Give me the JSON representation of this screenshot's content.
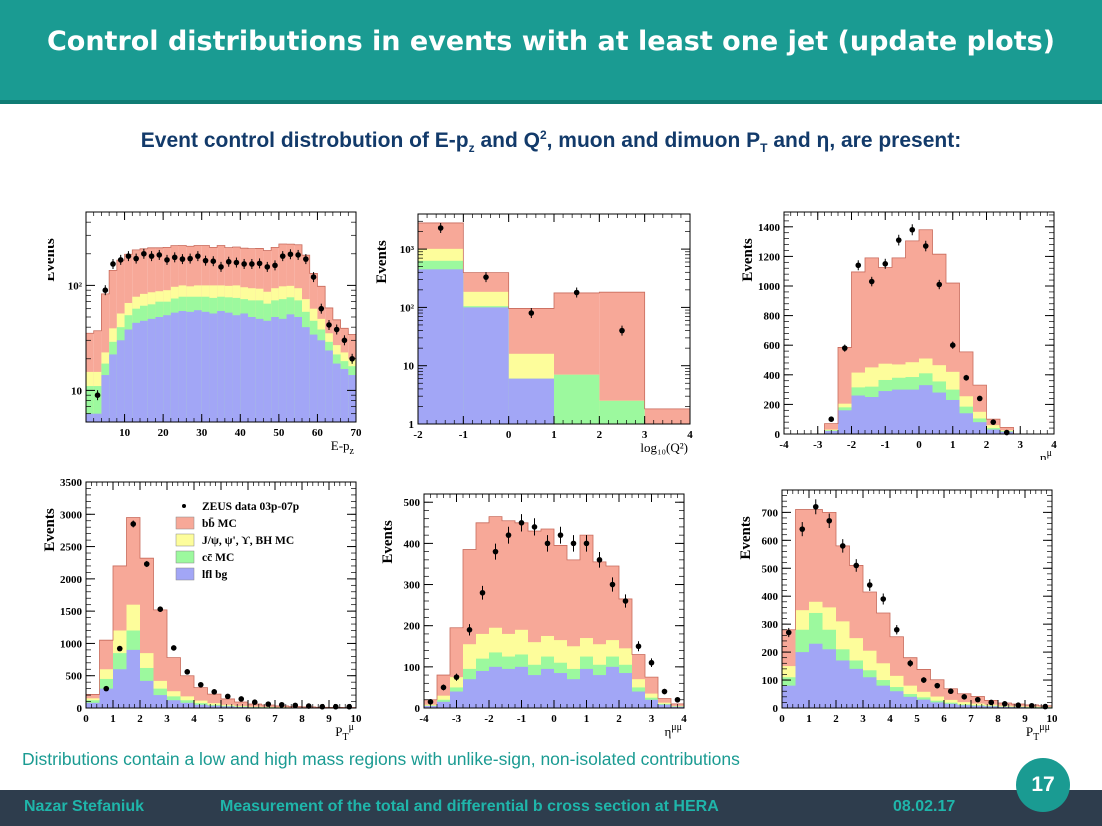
{
  "header": {
    "title": "Control distributions in events with at least one jet (update plots)"
  },
  "subtitle": {
    "part1": "Event control distrobution of E-p",
    "sub1": "z",
    "part2": " and Q",
    "sup2": "2",
    "part3": ", muon and dimuon  P",
    "sub3": "T",
    "part4": " and  η,  are present:"
  },
  "note": "Distributions contain a low and high mass regions with unlike-sign, non-isolated contributions",
  "footer": {
    "author": "Nazar  Stefaniuk",
    "talk": "Measurement of the total and differential b cross section at HERA",
    "date": "08.02.17",
    "page": "17"
  },
  "colors": {
    "bb": "#f7a898",
    "jpsi": "#fdfd9b",
    "cc": "#9cf99e",
    "lfl": "#a2a6f6",
    "header": "#1a9b92"
  },
  "chart_data": [
    {
      "type": "area",
      "xlabel": "E-p_z",
      "ylabel": "Events",
      "log": true,
      "xlim": [
        0,
        70
      ],
      "ylim": [
        5,
        500
      ],
      "xticks": [
        10,
        20,
        30,
        40,
        50,
        60,
        70
      ],
      "yticks": [
        {
          "v": 10,
          "t": "10"
        },
        {
          "v": 100,
          "t": "10²"
        }
      ],
      "edges": [
        0,
        2,
        4,
        6,
        8,
        10,
        12,
        14,
        16,
        18,
        20,
        22,
        24,
        26,
        28,
        30,
        32,
        34,
        36,
        38,
        40,
        42,
        44,
        46,
        48,
        50,
        52,
        54,
        56,
        58,
        60,
        62,
        64,
        66,
        68,
        70
      ],
      "lfl": [
        6,
        6,
        14,
        22,
        30,
        38,
        44,
        46,
        48,
        50,
        52,
        55,
        57,
        56,
        58,
        56,
        54,
        57,
        55,
        52,
        54,
        50,
        48,
        46,
        50,
        48,
        53,
        50,
        40,
        34,
        30,
        24,
        18,
        16,
        14
      ],
      "cc": [
        5,
        5,
        4,
        7,
        10,
        14,
        16,
        18,
        18,
        20,
        18,
        20,
        21,
        22,
        20,
        22,
        22,
        21,
        22,
        24,
        20,
        22,
        24,
        21,
        22,
        26,
        24,
        22,
        16,
        12,
        8,
        5,
        4,
        3,
        3
      ],
      "jpsi": [
        4,
        4,
        5,
        10,
        14,
        16,
        18,
        19,
        20,
        18,
        20,
        22,
        22,
        20,
        22,
        22,
        24,
        22,
        22,
        24,
        22,
        22,
        21,
        20,
        22,
        24,
        22,
        22,
        18,
        14,
        10,
        6,
        5,
        4,
        3
      ],
      "bb": [
        20,
        22,
        60,
        100,
        120,
        130,
        140,
        140,
        142,
        140,
        140,
        142,
        140,
        138,
        140,
        140,
        130,
        140,
        130,
        132,
        130,
        130,
        132,
        128,
        136,
        150,
        148,
        150,
        120,
        70,
        50,
        26,
        20,
        16,
        14
      ],
      "data_x": [
        3,
        5,
        7,
        9,
        11,
        13,
        15,
        17,
        19,
        21,
        23,
        25,
        27,
        29,
        31,
        33,
        35,
        37,
        39,
        41,
        43,
        45,
        47,
        49,
        51,
        53,
        55,
        57,
        59,
        61,
        63,
        65,
        67,
        69
      ],
      "data_y": [
        9,
        90,
        160,
        175,
        190,
        180,
        200,
        190,
        195,
        175,
        185,
        178,
        180,
        190,
        172,
        170,
        150,
        168,
        165,
        160,
        160,
        162,
        150,
        155,
        190,
        198,
        195,
        178,
        120,
        60,
        42,
        38,
        30,
        20
      ]
    },
    {
      "type": "area",
      "xlabel": "log₁₀(Q²)",
      "ylabel": "Events",
      "log": true,
      "xlim": [
        -2,
        4
      ],
      "ylim": [
        1,
        4000
      ],
      "xticks": [
        -2,
        -1,
        0,
        1,
        2,
        3,
        4
      ],
      "yticks": [
        {
          "v": 1,
          "t": "1"
        },
        {
          "v": 10,
          "t": "10"
        },
        {
          "v": 100,
          "t": "10²"
        },
        {
          "v": 1000,
          "t": "10³"
        }
      ],
      "edges": [
        -2,
        -1,
        0,
        1,
        2,
        3,
        4
      ],
      "lfl": [
        450,
        100,
        6,
        1,
        1,
        1
      ],
      "cc": [
        180,
        5,
        0.01,
        6,
        1.5,
        0.01
      ],
      "jpsi": [
        380,
        80,
        10,
        0.01,
        0.01,
        0.01
      ],
      "bb": [
        1800,
        210,
        80,
        170,
        180,
        0.8
      ],
      "data_x": [
        -1.5,
        -0.5,
        0.5,
        1.5,
        2.5
      ],
      "data_y": [
        2300,
        330,
        80,
        180,
        40
      ]
    },
    {
      "type": "area",
      "xlabel": "η^μ",
      "ylabel": "Events",
      "log": false,
      "xlim": [
        -4,
        4
      ],
      "ylim": [
        0,
        1500
      ],
      "xticks": [
        -4,
        -3,
        -2,
        -1,
        0,
        1,
        2,
        3,
        4
      ],
      "yticks": [
        {
          "v": 0,
          "t": "0"
        },
        {
          "v": 200,
          "t": "200"
        },
        {
          "v": 400,
          "t": "400"
        },
        {
          "v": 600,
          "t": "600"
        },
        {
          "v": 800,
          "t": "800"
        },
        {
          "v": 1000,
          "t": "1000"
        },
        {
          "v": 1200,
          "t": "1200"
        },
        {
          "v": 1400,
          "t": "1400"
        }
      ],
      "edges": [
        -2.8,
        -2.4,
        -2.0,
        -1.6,
        -1.2,
        -0.8,
        -0.4,
        0.0,
        0.4,
        0.8,
        1.2,
        1.6,
        2.0,
        2.4,
        2.8,
        3.2
      ],
      "lfl": [
        20,
        160,
        260,
        250,
        290,
        300,
        300,
        330,
        280,
        230,
        140,
        80,
        30,
        15,
        0
      ],
      "cc": [
        5,
        20,
        55,
        70,
        75,
        80,
        85,
        80,
        75,
        70,
        45,
        25,
        10,
        5,
        0
      ],
      "jpsi": [
        5,
        25,
        100,
        130,
        110,
        90,
        100,
        100,
        110,
        120,
        70,
        45,
        20,
        5,
        0
      ],
      "bb": [
        40,
        380,
        680,
        740,
        650,
        720,
        820,
        870,
        750,
        600,
        300,
        180,
        40,
        20,
        0
      ],
      "data_x": [
        -2.6,
        -2.2,
        -1.8,
        -1.4,
        -1.0,
        -0.6,
        -0.2,
        0.2,
        0.6,
        1.0,
        1.4,
        1.8,
        2.2,
        2.6
      ],
      "data_y": [
        100,
        580,
        1140,
        1030,
        1150,
        1310,
        1380,
        1270,
        1010,
        600,
        380,
        240,
        80,
        10
      ]
    },
    {
      "type": "area",
      "xlabel": "P_T^μ",
      "ylabel": "Events",
      "log": false,
      "xlim": [
        0,
        10
      ],
      "ylim": [
        0,
        3500
      ],
      "xticks": [
        0,
        1,
        2,
        3,
        4,
        5,
        6,
        7,
        8,
        9,
        10
      ],
      "yticks": [
        {
          "v": 0,
          "t": "0"
        },
        {
          "v": 500,
          "t": "500"
        },
        {
          "v": 1000,
          "t": "1000"
        },
        {
          "v": 1500,
          "t": "1500"
        },
        {
          "v": 2000,
          "t": "2000"
        },
        {
          "v": 2500,
          "t": "2500"
        },
        {
          "v": 3000,
          "t": "3000"
        },
        {
          "v": 3500,
          "t": "3500"
        }
      ],
      "edges": [
        0,
        0.5,
        1.0,
        1.5,
        2.0,
        2.5,
        3.0,
        3.5,
        4.0,
        4.5,
        5.0,
        5.5,
        6.0,
        6.5,
        7.0,
        7.5,
        8.0,
        8.5,
        9.0,
        9.5,
        10.0
      ],
      "lfl": [
        80,
        300,
        600,
        900,
        420,
        200,
        120,
        80,
        50,
        35,
        25,
        15,
        10,
        8,
        6,
        4,
        3,
        2,
        2,
        1
      ],
      "cc": [
        40,
        150,
        250,
        300,
        200,
        100,
        60,
        40,
        25,
        15,
        10,
        8,
        5,
        4,
        3,
        2,
        2,
        1,
        1,
        1
      ],
      "jpsi": [
        30,
        150,
        350,
        400,
        230,
        120,
        80,
        60,
        40,
        25,
        15,
        10,
        6,
        4,
        3,
        2,
        2,
        1,
        1,
        1
      ],
      "bb": [
        60,
        450,
        1000,
        1350,
        1470,
        1100,
        520,
        320,
        200,
        140,
        90,
        60,
        40,
        30,
        20,
        15,
        10,
        8,
        6,
        4
      ],
      "data_x": [
        0.75,
        1.25,
        1.75,
        2.25,
        2.75,
        3.25,
        3.75,
        4.25,
        4.75,
        5.25,
        5.75,
        6.25,
        6.75,
        7.25,
        7.75,
        8.25,
        8.75,
        9.25,
        9.75
      ],
      "data_y": [
        300,
        920,
        2850,
        2230,
        1530,
        930,
        560,
        360,
        250,
        180,
        140,
        90,
        60,
        50,
        40,
        30,
        20,
        20,
        20
      ]
    },
    {
      "type": "area",
      "xlabel": "η^μμ",
      "ylabel": "Events",
      "log": false,
      "xlim": [
        -4,
        4
      ],
      "ylim": [
        0,
        520
      ],
      "xticks": [
        -4,
        -3,
        -2,
        -1,
        0,
        1,
        2,
        3,
        4
      ],
      "yticks": [
        {
          "v": 0,
          "t": "0"
        },
        {
          "v": 100,
          "t": "100"
        },
        {
          "v": 200,
          "t": "200"
        },
        {
          "v": 300,
          "t": "300"
        },
        {
          "v": 400,
          "t": "400"
        },
        {
          "v": 500,
          "t": "500"
        }
      ],
      "edges": [
        -4.0,
        -3.6,
        -3.2,
        -2.8,
        -2.4,
        -2.0,
        -1.6,
        -1.2,
        -0.8,
        -0.4,
        0.0,
        0.4,
        0.8,
        1.2,
        1.6,
        2.0,
        2.4,
        2.8,
        3.2,
        3.6,
        4.0
      ],
      "lfl": [
        5,
        15,
        40,
        70,
        90,
        100,
        95,
        100,
        80,
        95,
        85,
        70,
        95,
        80,
        100,
        85,
        40,
        20,
        8,
        3
      ],
      "cc": [
        1,
        5,
        10,
        25,
        30,
        35,
        30,
        30,
        25,
        30,
        25,
        25,
        30,
        25,
        25,
        20,
        10,
        5,
        2,
        1
      ],
      "jpsi": [
        2,
        10,
        25,
        60,
        60,
        60,
        55,
        60,
        55,
        50,
        55,
        55,
        45,
        50,
        40,
        40,
        20,
        10,
        3,
        1
      ],
      "bb": [
        12,
        50,
        120,
        230,
        270,
        270,
        275,
        260,
        270,
        260,
        230,
        210,
        250,
        200,
        180,
        120,
        60,
        40,
        10,
        5
      ],
      "data_x": [
        -3.8,
        -3.4,
        -3.0,
        -2.6,
        -2.2,
        -1.8,
        -1.4,
        -1.0,
        -0.6,
        -0.2,
        0.2,
        0.6,
        1.0,
        1.4,
        1.8,
        2.2,
        2.6,
        3.0,
        3.4,
        3.8
      ],
      "data_y": [
        15,
        50,
        75,
        190,
        280,
        380,
        420,
        450,
        440,
        400,
        420,
        400,
        400,
        360,
        300,
        260,
        150,
        110,
        40,
        20
      ]
    },
    {
      "type": "area",
      "xlabel": "P_T^μμ",
      "ylabel": "Events",
      "log": false,
      "xlim": [
        0,
        10
      ],
      "ylim": [
        0,
        780
      ],
      "xticks": [
        0,
        1,
        2,
        3,
        4,
        5,
        6,
        7,
        8,
        9,
        10
      ],
      "yticks": [
        {
          "v": 0,
          "t": "0"
        },
        {
          "v": 100,
          "t": "100"
        },
        {
          "v": 200,
          "t": "200"
        },
        {
          "v": 300,
          "t": "300"
        },
        {
          "v": 400,
          "t": "400"
        },
        {
          "v": 500,
          "t": "500"
        },
        {
          "v": 600,
          "t": "600"
        },
        {
          "v": 700,
          "t": "700"
        }
      ],
      "edges": [
        0,
        0.5,
        1.0,
        1.5,
        2.0,
        2.5,
        3.0,
        3.5,
        4.0,
        4.5,
        5.0,
        5.5,
        6.0,
        6.5,
        7.0,
        7.5,
        8.0,
        8.5,
        9.0,
        9.5,
        10.0
      ],
      "lfl": [
        80,
        200,
        230,
        210,
        170,
        140,
        110,
        80,
        60,
        40,
        30,
        20,
        15,
        10,
        8,
        6,
        4,
        3,
        2,
        2
      ],
      "cc": [
        30,
        80,
        110,
        70,
        40,
        30,
        25,
        20,
        15,
        10,
        8,
        6,
        4,
        3,
        2,
        2,
        1,
        1,
        1,
        1
      ],
      "jpsi": [
        40,
        70,
        40,
        80,
        100,
        80,
        70,
        60,
        40,
        30,
        20,
        15,
        10,
        8,
        6,
        4,
        3,
        2,
        2,
        1
      ],
      "bb": [
        130,
        360,
        330,
        340,
        270,
        260,
        210,
        180,
        140,
        100,
        80,
        60,
        40,
        30,
        25,
        15,
        10,
        8,
        6,
        4
      ],
      "data_x": [
        0.25,
        0.75,
        1.25,
        1.75,
        2.25,
        2.75,
        3.25,
        3.75,
        4.25,
        4.75,
        5.25,
        5.75,
        6.25,
        6.75,
        7.25,
        7.75,
        8.25,
        8.75,
        9.25,
        9.75
      ],
      "data_y": [
        270,
        640,
        720,
        670,
        580,
        510,
        440,
        390,
        280,
        160,
        100,
        80,
        60,
        40,
        30,
        20,
        15,
        10,
        8,
        5
      ]
    }
  ],
  "legend": {
    "items": [
      {
        "label": "ZEUS data 03p-07p",
        "kind": "dot"
      },
      {
        "label": "bb̄ MC",
        "kind": "bb"
      },
      {
        "label": "J/ψ, ψ', ϒ, BH MC",
        "kind": "jpsi"
      },
      {
        "label": "cc̄ MC",
        "kind": "cc"
      },
      {
        "label": "lfl bg",
        "kind": "lfl"
      }
    ]
  }
}
